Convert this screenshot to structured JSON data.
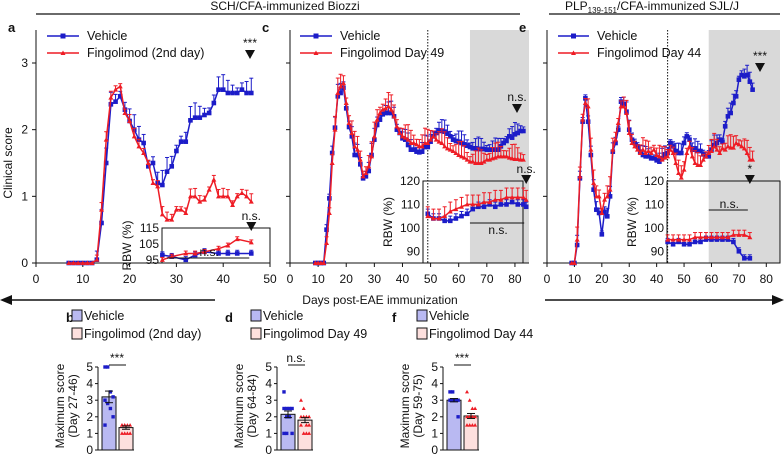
{
  "header": {
    "left_title": "SCH/CFA-immunized Biozzi",
    "right_title_main": "PLP",
    "right_title_sub": "139-151",
    "right_title_rest": "/CFA-immunized SJL/J",
    "x_axis_label": "Days post-EAE immunization",
    "y_axis_label": "Clinical score"
  },
  "colors": {
    "vehicle": "#1c1cc8",
    "fingolimod": "#ee1c25",
    "vehicle_bar": "#b9b9f2",
    "fingolimod_bar": "#fde0de",
    "shade": "#d9d9d9"
  },
  "chart_data": [
    {
      "type": "line",
      "panel": "a",
      "ylabel": "Clinical score",
      "xlabel": "Days post-EAE immunization",
      "xlim": [
        0,
        50
      ],
      "ylim": [
        0,
        3.5
      ],
      "xticks": [
        "0",
        "10",
        "20",
        "30",
        "40",
        "50"
      ],
      "yticks": [
        "0",
        "1",
        "2",
        "3"
      ],
      "legend": [
        "Vehicle",
        "Fingolimod (2nd day)"
      ],
      "annotation": "***",
      "series": [
        {
          "name": "Vehicle",
          "x_start": 7,
          "sem": 0.15,
          "y": [
            0,
            0,
            0,
            0,
            0,
            0,
            0.05,
            0.6,
            1.5,
            2.38,
            2.42,
            2.5,
            2.3,
            2.13,
            2.0,
            1.85,
            1.8,
            1.45,
            1.5,
            1.2,
            1.17,
            1.37,
            1.45,
            1.68,
            1.82,
            1.82,
            2.14,
            2.18,
            2.18,
            2.22,
            2.25,
            2.4,
            2.6,
            2.6,
            2.55,
            2.55,
            2.55,
            2.6,
            2.55,
            2.55
          ]
        },
        {
          "name": "Fingolimod (2nd day)",
          "x_start": 7,
          "sem": 0.08,
          "y": [
            0,
            0,
            0,
            0,
            0,
            0,
            0.05,
            0.8,
            1.85,
            2.48,
            2.6,
            2.65,
            2.25,
            2.13,
            1.9,
            1.75,
            1.65,
            1.5,
            1.2,
            1.15,
            0.73,
            0.65,
            0.65,
            0.8,
            0.8,
            0.75,
            1.0,
            1.0,
            0.92,
            0.95,
            1.1,
            1.25,
            1.0,
            1.0,
            1.0,
            0.87,
            1.0,
            1.05,
            1.0,
            0.92
          ]
        }
      ],
      "inset": {
        "ylabel": "RBW (%)",
        "yticks": [
          "95",
          "105",
          "115"
        ],
        "ylim": [
          93,
          115
        ],
        "annotation_top": "n.s.",
        "annotation_line": "n.s.",
        "series": [
          {
            "name": "Vehicle",
            "x": [
              27,
              29,
              32,
              34,
              36,
              39,
              41,
              43,
              46
            ],
            "y": [
              98,
              97,
              95,
              98,
              100,
              99,
              99,
              99,
              99
            ],
            "sem": 2
          },
          {
            "name": "Fingolimod (2nd day)",
            "x": [
              27,
              29,
              32,
              34,
              36,
              39,
              41,
              43,
              46
            ],
            "y": [
              95,
              97,
              99,
              99,
              100,
              102,
              104,
              108,
              106
            ],
            "sem": 1.5
          }
        ]
      }
    },
    {
      "type": "line",
      "panel": "c",
      "xlim": [
        0,
        85
      ],
      "ylim": [
        0,
        3.5
      ],
      "xticks": [
        "0",
        "10",
        "20",
        "30",
        "40",
        "50",
        "60",
        "70",
        "80"
      ],
      "legend": [
        "Vehicle",
        "Fingolimod Day 49"
      ],
      "treatment_day": 49,
      "shaded_range": [
        64,
        85
      ],
      "annotation": "n.s.",
      "series": [
        {
          "name": "Vehicle",
          "x_start": 9,
          "sem": 0.12,
          "y": [
            0,
            0,
            0,
            0,
            0.5,
            0.97,
            1.65,
            2.03,
            2.5,
            2.55,
            2.63,
            2.32,
            2.04,
            1.9,
            1.62,
            1.62,
            1.48,
            1.27,
            1.3,
            1.38,
            1.62,
            1.85,
            2.07,
            2.15,
            2.23,
            2.25,
            2.25,
            2.25,
            2.2,
            2.0,
            1.95,
            1.87,
            1.85,
            1.77,
            1.7,
            1.7,
            1.67,
            1.66,
            1.67,
            1.74,
            1.74,
            1.82,
            1.9,
            1.95,
            1.99,
            1.98,
            1.97,
            1.94,
            1.9,
            1.85,
            1.83,
            1.82,
            1.8,
            1.78,
            1.76,
            1.74,
            1.72,
            1.72,
            1.71,
            1.71,
            1.71,
            1.7,
            1.7,
            1.7,
            1.7,
            1.7,
            1.75,
            1.8,
            1.83,
            1.9,
            1.88,
            1.93,
            1.95,
            1.98,
            1.98
          ]
        },
        {
          "name": "Fingolimod Day 49",
          "x_start": 9,
          "sem": 0.15,
          "y": [
            0,
            0,
            0,
            0,
            0.3,
            0.75,
            1.5,
            2.0,
            2.55,
            2.65,
            2.7,
            2.4,
            2.1,
            1.95,
            1.75,
            1.7,
            1.55,
            1.3,
            1.35,
            1.45,
            1.6,
            1.9,
            2.15,
            2.25,
            2.3,
            2.32,
            2.35,
            2.3,
            2.2,
            2.05,
            1.95,
            1.9,
            1.88,
            1.85,
            1.8,
            1.8,
            1.78,
            1.75,
            1.75,
            1.8,
            1.8,
            1.85,
            1.9,
            1.85,
            1.82,
            1.8,
            1.75,
            1.72,
            1.7,
            1.68,
            1.65,
            1.62,
            1.6,
            1.58,
            1.55,
            1.52,
            1.52,
            1.5,
            1.5,
            1.5,
            1.52,
            1.55,
            1.55,
            1.57,
            1.58,
            1.6,
            1.6,
            1.6,
            1.6,
            1.58,
            1.57,
            1.56,
            1.56,
            1.55,
            1.55
          ]
        }
      ],
      "inset": {
        "ylabel": "RBW (%)",
        "yticks": [
          "90",
          "100",
          "110",
          "120"
        ],
        "ylim": [
          85,
          120
        ],
        "annotation_top": "n.s.",
        "annotation_line": "n.s.",
        "series": [
          {
            "name": "Vehicle",
            "x": [
              49,
              51,
              53,
              55,
              57,
              59,
              61,
              63,
              65,
              67,
              69,
              71,
              73,
              75,
              77,
              79,
              81,
              83,
              84
            ],
            "y": [
              106,
              104,
              104,
              103,
              103,
              104,
              105,
              106,
              108,
              109,
              109,
              110,
              109,
              110,
              110,
              111,
              110,
              110,
              109
            ],
            "sem": 2
          },
          {
            "name": "Fingolimod Day 49",
            "x": [
              49,
              51,
              53,
              55,
              57,
              59,
              61,
              63,
              65,
              67,
              69,
              71,
              73,
              75,
              77,
              79,
              81,
              83,
              84
            ],
            "y": [
              105,
              104,
              104,
              105,
              107,
              108,
              109,
              110,
              110,
              110,
              111,
              111,
              112,
              112,
              113,
              113,
              113,
              113,
              112
            ],
            "sem": 4
          }
        ]
      }
    },
    {
      "type": "line",
      "panel": "e",
      "xlim": [
        0,
        85
      ],
      "ylim": [
        0,
        3.5
      ],
      "xticks": [
        "0",
        "10",
        "20",
        "30",
        "40",
        "50",
        "60",
        "70",
        "80"
      ],
      "legend": [
        "Vehicle",
        "Fingolimod Day 44"
      ],
      "treatment_day": 44,
      "shaded_range": [
        59,
        85
      ],
      "annotation": "***",
      "series": [
        {
          "name": "Vehicle",
          "x_start": 9,
          "sem": 0.1,
          "y": [
            0,
            0,
            0.27,
            1.27,
            2.12,
            2.47,
            2.12,
            1.62,
            1.1,
            0.8,
            0.75,
            0.43,
            0.77,
            0.7,
            1.0,
            1.67,
            1.8,
            2.0,
            2.42,
            2.38,
            2.27,
            2.0,
            1.85,
            1.8,
            1.75,
            1.67,
            1.62,
            1.6,
            1.6,
            1.57,
            1.57,
            1.54,
            1.52,
            1.57,
            1.63,
            1.65,
            1.8,
            1.75,
            1.68,
            1.65,
            1.65,
            1.8,
            1.9,
            1.85,
            1.7,
            1.72,
            1.68,
            1.68,
            1.63,
            1.6,
            1.6,
            1.7,
            1.77,
            1.8,
            1.85,
            1.82,
            2.05,
            2.2,
            2.25,
            2.4,
            2.5,
            2.75,
            2.82,
            2.8,
            2.82,
            2.72,
            2.6
          ]
        },
        {
          "name": "Fingolimod Day 44",
          "x_start": 9,
          "sem": 0.13,
          "y": [
            0,
            0,
            0.35,
            1.3,
            2.15,
            2.4,
            2.35,
            1.7,
            1.2,
            1.0,
            1.0,
            0.75,
            0.95,
            1.0,
            1.1,
            1.7,
            1.85,
            2.1,
            2.35,
            2.35,
            2.25,
            1.95,
            1.8,
            1.75,
            1.7,
            1.65,
            1.7,
            1.65,
            1.68,
            1.65,
            1.7,
            1.62,
            1.6,
            1.55,
            1.58,
            1.6,
            1.7,
            1.65,
            1.5,
            1.35,
            1.28,
            1.4,
            1.65,
            1.75,
            1.6,
            1.5,
            1.47,
            1.47,
            1.55,
            1.6,
            1.65,
            1.68,
            1.75,
            1.7,
            1.65,
            1.72,
            1.7,
            1.75,
            1.73,
            1.73,
            1.8,
            1.78,
            1.75,
            1.72,
            1.65,
            1.55,
            1.55
          ]
        }
      ],
      "inset": {
        "ylabel": "RBW (%)",
        "yticks": [
          "90",
          "100",
          "110",
          "120"
        ],
        "ylim": [
          85,
          120
        ],
        "annotation_top": "*",
        "annotation_line": "n.s.",
        "series": [
          {
            "name": "Vehicle",
            "x": [
              44,
              46,
              48,
              50,
              52,
              54,
              56,
              58,
              60,
              62,
              64,
              66,
              68,
              70,
              72,
              74
            ],
            "y": [
              94,
              93,
              94,
              93,
              93,
              94,
              94,
              95,
              95,
              95,
              95,
              95,
              94,
              90,
              87,
              87
            ],
            "sem": 1.5
          },
          {
            "name": "Fingolimod Day 44",
            "x": [
              44,
              46,
              48,
              50,
              52,
              54,
              56,
              58,
              60,
              62,
              64,
              66,
              68,
              70,
              72,
              74
            ],
            "y": [
              95,
              95,
              95,
              95,
              95,
              96,
              96,
              96,
              96,
              96,
              96,
              96,
              97,
              97,
              97,
              96
            ],
            "sem": 2
          }
        ]
      }
    },
    {
      "type": "bar",
      "panel": "b",
      "ylabel": "Maximum score",
      "ylabel2": "(Day 27-46)",
      "ylim": [
        0,
        5
      ],
      "yticks": [
        "0",
        "1",
        "2",
        "3",
        "4",
        "5"
      ],
      "legend": [
        "Vehicle",
        "Fingolimod (2nd day)"
      ],
      "annotation": "***",
      "bars": [
        {
          "name": "Vehicle",
          "mean": 3.2,
          "sem": 0.35,
          "points": [
            5,
            5,
            3.5,
            3.2,
            3,
            2.8,
            2.5,
            2,
            1.5
          ]
        },
        {
          "name": "Fingolimod (2nd day)",
          "mean": 1.35,
          "sem": 0.1,
          "points": [
            1.5,
            1.5,
            1.5,
            1.5,
            1.5,
            1.5,
            1,
            1,
            1,
            1
          ]
        }
      ]
    },
    {
      "type": "bar",
      "panel": "d",
      "ylabel": "Maximum score",
      "ylabel2": "(Day 64-84)",
      "ylim": [
        0,
        5
      ],
      "yticks": [
        "0",
        "1",
        "2",
        "3",
        "4",
        "5"
      ],
      "legend": [
        "Vehicle",
        "Fingolimod Day 49"
      ],
      "annotation": "n.s.",
      "bars": [
        {
          "name": "Vehicle",
          "mean": 2.15,
          "sem": 0.2,
          "points": [
            3.5,
            2.5,
            2.5,
            2.5,
            2.5,
            2,
            2,
            1,
            1,
            1
          ]
        },
        {
          "name": "Fingolimod Day 49",
          "mean": 1.8,
          "sem": 0.15,
          "points": [
            3,
            2.5,
            2,
            2,
            2,
            2,
            1.5,
            1.5,
            1.5,
            1,
            1,
            1
          ]
        }
      ]
    },
    {
      "type": "bar",
      "panel": "f",
      "ylabel": "Maximum score",
      "ylabel2": "(Day 59-75)",
      "ylim": [
        0,
        5
      ],
      "yticks": [
        "0",
        "1",
        "2",
        "3",
        "4",
        "5"
      ],
      "legend": [
        "Vehicle",
        "Fingolimod Day 44"
      ],
      "annotation": "***",
      "bars": [
        {
          "name": "Vehicle",
          "mean": 3.0,
          "sem": 0.1,
          "points": [
            3.5,
            3.5,
            3,
            3,
            3,
            3,
            3,
            2
          ]
        },
        {
          "name": "Fingolimod Day 44",
          "mean": 2.05,
          "sem": 0.15,
          "points": [
            3.5,
            3,
            2.5,
            2.5,
            2,
            2,
            2,
            2,
            1.5,
            1.5,
            1.5,
            1.5
          ]
        }
      ]
    }
  ]
}
